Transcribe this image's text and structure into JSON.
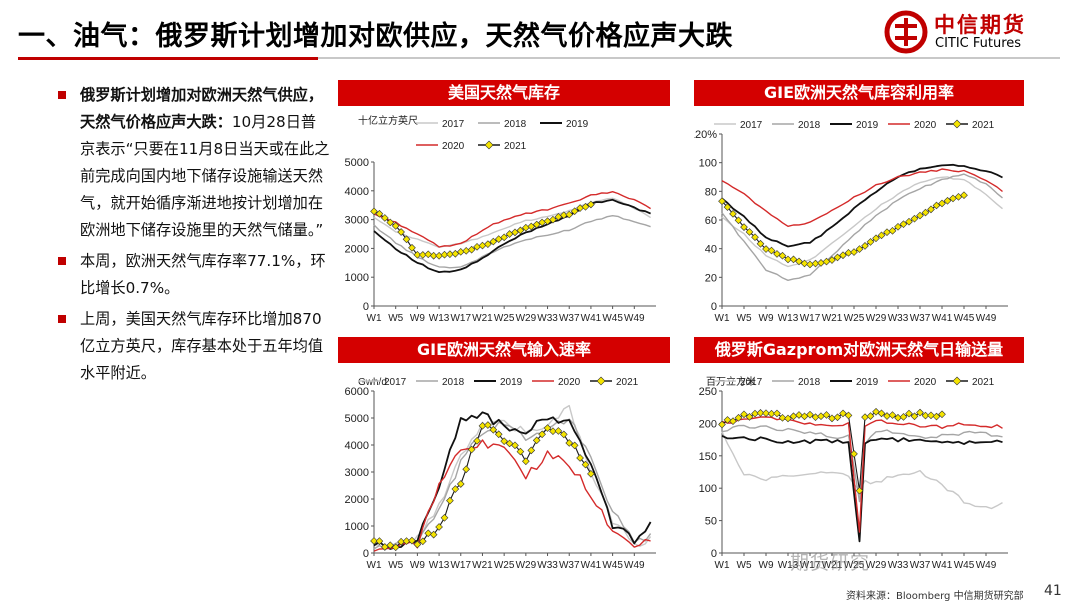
{
  "slide": {
    "title": "一、油气：俄罗斯计划增加对欧供应，天然气价格应声大跌",
    "page_number": "41",
    "source": "资料来源：Bloomberg  中信期货研究部",
    "watermark": "期货研究",
    "logo": {
      "cn": "中信期货",
      "en": "CITIC Futures"
    },
    "accent_color": "#c00000",
    "bullets": [
      {
        "bold": "俄罗斯计划增加对欧洲天然气供应，天然气价格应声大跌：",
        "text": "10月28日普京表示“只要在11月8日当天或在此之前完成向国内地下储存设施输送天然气，就开始循序渐进地按计划增加在欧洲地下储存设施里的天然气储量。”"
      },
      {
        "bold": "",
        "text": "本周，欧洲天然气库存率77.1%，环比增长0.7%。"
      },
      {
        "bold": "",
        "text": "上周，美国天然气库存环比增加870亿立方英尺，库存基本处于五年均值水平附近。"
      }
    ]
  },
  "series_style": {
    "2017": "#c8c8c8",
    "2018": "#a5a5a5",
    "2019": "#111111",
    "2020": "#d42a2a",
    "2021": "#f5e400"
  },
  "x_ticks": [
    "W1",
    "W5",
    "W9",
    "W13",
    "W17",
    "W21",
    "W25",
    "W29",
    "W33",
    "W37",
    "W41",
    "W45",
    "W49"
  ],
  "chart_data": [
    {
      "type": "line",
      "title": "美国天然气库存",
      "ylabel": "十亿立方英尺",
      "ylim": [
        0,
        5000
      ],
      "yticks": [
        0,
        1000,
        2000,
        3000,
        4000,
        5000
      ],
      "ytick_labels": [
        "0",
        "1000",
        "2000",
        "3000",
        "4000",
        "5000"
      ],
      "legend_placement": "top",
      "x_anchor_weeks": [
        1,
        5,
        9,
        13,
        17,
        21,
        25,
        29,
        33,
        37,
        41,
        45,
        49,
        52
      ],
      "series": [
        {
          "name": "2017",
          "values": [
            3100,
            2600,
            2300,
            2050,
            2150,
            2400,
            2700,
            2950,
            3100,
            3300,
            3600,
            3750,
            3400,
            3100
          ]
        },
        {
          "name": "2018",
          "values": [
            2800,
            2200,
            1700,
            1350,
            1350,
            1700,
            2050,
            2300,
            2450,
            2650,
            2950,
            3150,
            2950,
            2750
          ]
        },
        {
          "name": "2019",
          "values": [
            2600,
            2000,
            1500,
            1150,
            1250,
            1650,
            2150,
            2550,
            2850,
            3150,
            3550,
            3700,
            3400,
            3200
          ]
        },
        {
          "name": "2020",
          "values": [
            3200,
            2900,
            2500,
            2050,
            2150,
            2650,
            3000,
            3200,
            3350,
            3550,
            3850,
            3950,
            3700,
            3400
          ]
        },
        {
          "name": "2021",
          "values": [
            3300,
            2800,
            1800,
            1750,
            1850,
            2100,
            2400,
            2700,
            2950,
            3200,
            3550,
            null,
            null,
            null
          ]
        }
      ]
    },
    {
      "type": "line",
      "title": "GIE欧洲天然气库容利用率",
      "ylabel": "",
      "ylim": [
        0,
        120
      ],
      "yticks": [
        0,
        20,
        40,
        60,
        80,
        100,
        120
      ],
      "ytick_labels": [
        "0",
        "20",
        "40",
        "60",
        "80",
        "100",
        "120%"
      ],
      "legend_placement": "top",
      "x_anchor_weeks": [
        1,
        5,
        9,
        13,
        17,
        21,
        25,
        29,
        33,
        37,
        41,
        45,
        49,
        52
      ],
      "series": [
        {
          "name": "2017",
          "values": [
            62,
            50,
            35,
            28,
            32,
            44,
            56,
            68,
            78,
            86,
            90,
            88,
            78,
            68
          ]
        },
        {
          "name": "2018",
          "values": [
            65,
            45,
            25,
            18,
            22,
            35,
            50,
            63,
            74,
            82,
            88,
            92,
            85,
            75
          ]
        },
        {
          "name": "2019",
          "values": [
            75,
            62,
            48,
            42,
            44,
            55,
            68,
            80,
            90,
            96,
            98,
            98,
            94,
            90
          ]
        },
        {
          "name": "2020",
          "values": [
            88,
            78,
            66,
            56,
            58,
            67,
            76,
            84,
            90,
            93,
            95,
            94,
            88,
            80
          ]
        },
        {
          "name": "2021",
          "values": [
            73,
            55,
            40,
            33,
            29,
            32,
            38,
            47,
            55,
            63,
            72,
            77,
            null,
            null
          ]
        }
      ]
    },
    {
      "type": "line",
      "title": "GIE欧洲天然气输入速率",
      "ylabel": "Gwh/d",
      "ylim": [
        0,
        6000
      ],
      "yticks": [
        0,
        1000,
        2000,
        3000,
        4000,
        5000,
        6000
      ],
      "ytick_labels": [
        "0",
        "1000",
        "2000",
        "3000",
        "4000",
        "5000",
        "6000"
      ],
      "legend_placement": "top",
      "x_anchor_weeks": [
        1,
        5,
        9,
        13,
        17,
        21,
        25,
        29,
        33,
        37,
        41,
        45,
        49,
        52
      ],
      "series": [
        {
          "name": "2017",
          "values": [
            200,
            300,
            500,
            1800,
            3500,
            4800,
            4800,
            4500,
            4800,
            5400,
            3000,
            1200,
            300,
            500
          ]
        },
        {
          "name": "2018",
          "values": [
            200,
            300,
            400,
            1500,
            3300,
            4500,
            4800,
            4300,
            4600,
            5000,
            3500,
            1500,
            400,
            600
          ]
        },
        {
          "name": "2019",
          "values": [
            300,
            200,
            500,
            2500,
            5000,
            5100,
            4700,
            4500,
            5000,
            4800,
            3400,
            1000,
            500,
            1100
          ]
        },
        {
          "name": "2020",
          "values": [
            150,
            200,
            300,
            2600,
            3800,
            4100,
            3800,
            2800,
            3700,
            3300,
            2200,
            700,
            300,
            400
          ]
        },
        {
          "name": "2021",
          "values": [
            300,
            350,
            400,
            900,
            2700,
            4800,
            4200,
            3500,
            4600,
            4200,
            2800,
            null,
            null,
            null
          ]
        }
      ]
    },
    {
      "type": "line",
      "title": "俄罗斯Gazprom对欧洲天然气日输送量",
      "ylabel": "百万立方米",
      "ylim": [
        0,
        250
      ],
      "yticks": [
        0,
        50,
        100,
        150,
        200,
        250
      ],
      "ytick_labels": [
        "0",
        "50",
        "100",
        "150",
        "200",
        "250"
      ],
      "legend_placement": "top",
      "x_anchor_weeks": [
        1,
        5,
        9,
        13,
        17,
        21,
        24,
        26,
        27,
        29,
        33,
        37,
        41,
        45,
        49,
        52
      ],
      "series": [
        {
          "name": "2017",
          "values": [
            185,
            120,
            115,
            118,
            120,
            125,
            120,
            95,
            110,
            110,
            120,
            125,
            105,
            80,
            70,
            75
          ]
        },
        {
          "name": "2018",
          "values": [
            190,
            195,
            195,
            190,
            185,
            180,
            180,
            80,
            170,
            190,
            185,
            180,
            180,
            185,
            185,
            180
          ]
        },
        {
          "name": "2019",
          "values": [
            180,
            178,
            175,
            172,
            172,
            172,
            170,
            15,
            170,
            175,
            175,
            172,
            172,
            170,
            172,
            172
          ]
        },
        {
          "name": "2020",
          "values": [
            200,
            205,
            210,
            205,
            200,
            195,
            200,
            30,
            195,
            205,
            200,
            195,
            195,
            200,
            195,
            195
          ]
        },
        {
          "name": "2021",
          "values": [
            200,
            212,
            215,
            210,
            212,
            210,
            215,
            95,
            210,
            215,
            210,
            215,
            212,
            null,
            null,
            null
          ]
        }
      ]
    }
  ]
}
